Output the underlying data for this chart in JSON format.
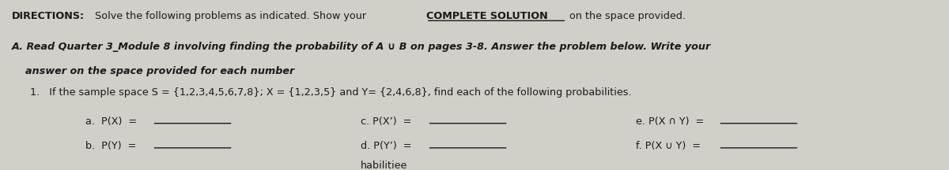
{
  "bg_color": "#d0cfc8",
  "text_color": "#1a1a1a",
  "figsize": [
    12.0,
    2.16
  ],
  "dpi": 100,
  "line1": "DIRECTIONS: Solve the following problems as indicated. Show your COMPLETE SOLUTION on the space provided.",
  "line1_bold_prefix": "DIRECTIONS:",
  "line1_underline": "COMPLETE SOLUTION",
  "line2a": "A. Read Quarter 3_Module 8 involving finding the probability of A ∪ B on pages 3-8. Answer the problem below. Write your",
  "line2b": "    answer on the space provided for each number",
  "line3": "      1.   If the sample space S = {1,2,3,4,5,6,7,8}; X = {1,2,3,5} and Y= {2,4,6,8}, find each of the following probabilities.",
  "row1_left": "a.  P(X)  =",
  "row1_mid": "c. P(X’)  =",
  "row1_right": "e. P(X ∩ Y)  =",
  "row2_left": "b.  P(Y)  =",
  "row2_mid": "d. P(Y’)  =",
  "row2_right": "f. P(X ∪ Y)  =",
  "bottom_text": "habilitiee"
}
